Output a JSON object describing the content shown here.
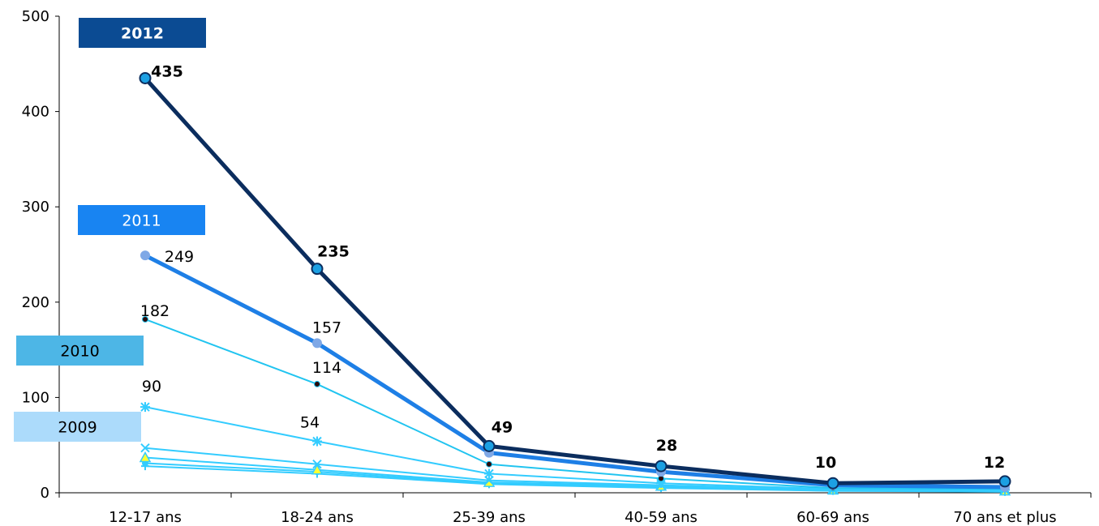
{
  "chart_data": {
    "type": "line",
    "title": "",
    "xlabel": "",
    "ylabel": "",
    "ylim": [
      0,
      500
    ],
    "yticks": [
      0,
      100,
      200,
      300,
      400,
      500
    ],
    "grid": false,
    "categories": [
      "12-17 ans",
      "18-24 ans",
      "25-39 ans",
      "40-59 ans",
      "60-69 ans",
      "70 ans et plus"
    ],
    "series": [
      {
        "name": "",
        "values": [
          28,
          20,
          9,
          5,
          2,
          1
        ],
        "color": "#33CCFF",
        "marker": "plus",
        "labels": [
          "",
          "",
          "",
          "",
          "",
          ""
        ]
      },
      {
        "name": "",
        "values": [
          31,
          22,
          10,
          6,
          2,
          2
        ],
        "color": "#33CCFF",
        "marker": "circle",
        "labels": [
          "",
          "",
          "",
          "",
          "",
          ""
        ]
      },
      {
        "name": "",
        "values": [
          37,
          24,
          11,
          7,
          3,
          2
        ],
        "color": "#33CCFF",
        "marker": "triangle",
        "labels": [
          "",
          "",
          "",
          "",
          "",
          ""
        ]
      },
      {
        "name": "2009",
        "values": [
          47,
          30,
          13,
          8,
          3,
          3
        ],
        "color": "#33CCFF",
        "marker": "x",
        "labels": [
          "",
          "",
          "",
          "",
          "",
          ""
        ]
      },
      {
        "name": "",
        "values": [
          90,
          54,
          20,
          10,
          4,
          3
        ],
        "color": "#33CCFF",
        "marker": "star",
        "labels": [
          "90",
          "54",
          "",
          "",
          "",
          ""
        ]
      },
      {
        "name": "2010",
        "values": [
          182,
          114,
          30,
          15,
          5,
          4
        ],
        "color": "#21C4F0",
        "marker": "dot-dark",
        "labels": [
          "182",
          "114",
          "",
          "",
          "",
          ""
        ]
      },
      {
        "name": "2011",
        "values": [
          249,
          157,
          42,
          22,
          8,
          6
        ],
        "color": "#1E7FE6",
        "marker": "circle-light",
        "labels": [
          "249",
          "157",
          "",
          "",
          "",
          ""
        ]
      },
      {
        "name": "2012",
        "values": [
          435,
          235,
          49,
          28,
          10,
          12
        ],
        "color": "#0B2D5E",
        "marker": "circle-big",
        "labels": [
          "435",
          "235",
          "49",
          "28",
          "10",
          "12"
        ]
      }
    ],
    "legend_boxes": [
      {
        "label": "2012",
        "fill": "#0B4B93",
        "text_color": "#FFFFFF",
        "bold": true
      },
      {
        "label": "2011",
        "fill": "#1884F2",
        "text_color": "#FFFFFF",
        "bold": false
      },
      {
        "label": "2010",
        "fill": "#4DB6E6",
        "text_color": "#000000",
        "bold": false
      },
      {
        "label": "2009",
        "fill": "#ACDBFB",
        "text_color": "#000000",
        "bold": false
      }
    ]
  }
}
